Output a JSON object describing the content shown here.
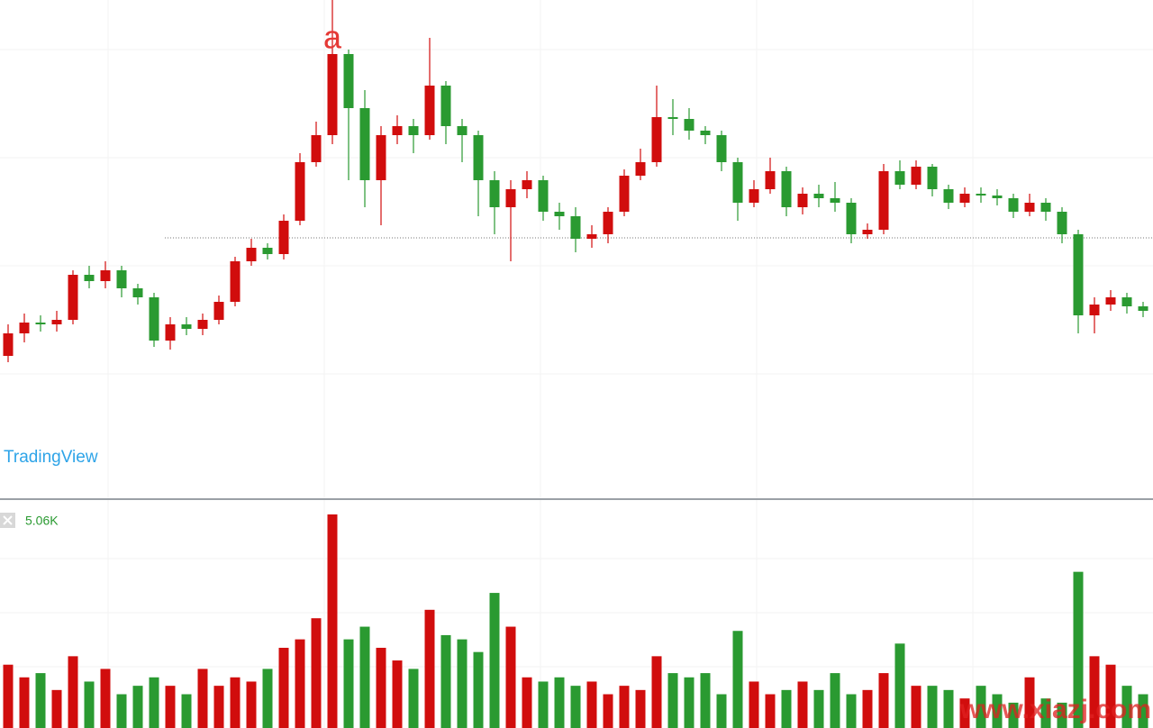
{
  "chart_data": {
    "type": "candlestick",
    "annotation": "a",
    "branding": "TradingView",
    "volume_label": "5.06K",
    "watermark": "www.xiazj.com",
    "up_color": "#d10d0d",
    "down_color": "#2a9a31",
    "ylim": [
      250,
      800
    ],
    "level": 536,
    "open": [
      405,
      430,
      442,
      440,
      445,
      495,
      488,
      500,
      480,
      470,
      422,
      440,
      435,
      445,
      465,
      510,
      525,
      518,
      555,
      620,
      650,
      740,
      680,
      600,
      650,
      660,
      650,
      705,
      660,
      650,
      600,
      570,
      590,
      600,
      565,
      560,
      535,
      540,
      565,
      605,
      620,
      670,
      668,
      655,
      650,
      620,
      575,
      590,
      610,
      570,
      585,
      580,
      575,
      540,
      545,
      610,
      595,
      615,
      590,
      575,
      585,
      583,
      580,
      565,
      575,
      565,
      540,
      450,
      462,
      470,
      460
    ],
    "high": [
      440,
      452,
      450,
      455,
      500,
      505,
      510,
      505,
      485,
      475,
      448,
      448,
      452,
      472,
      515,
      535,
      530,
      562,
      630,
      665,
      800,
      745,
      700,
      660,
      672,
      668,
      758,
      710,
      668,
      655,
      610,
      600,
      610,
      605,
      575,
      570,
      550,
      570,
      612,
      635,
      705,
      690,
      680,
      660,
      655,
      625,
      600,
      625,
      615,
      592,
      595,
      598,
      580,
      552,
      618,
      622,
      622,
      618,
      595,
      592,
      592,
      590,
      585,
      585,
      580,
      570,
      545,
      470,
      478,
      475,
      465
    ],
    "low": [
      398,
      420,
      432,
      432,
      440,
      480,
      480,
      470,
      462,
      415,
      412,
      428,
      428,
      440,
      460,
      505,
      512,
      512,
      550,
      615,
      640,
      600,
      570,
      550,
      640,
      630,
      645,
      640,
      620,
      560,
      540,
      510,
      580,
      555,
      545,
      520,
      525,
      530,
      560,
      600,
      615,
      650,
      645,
      640,
      610,
      555,
      570,
      585,
      560,
      562,
      570,
      565,
      530,
      535,
      540,
      590,
      590,
      582,
      568,
      570,
      575,
      572,
      558,
      560,
      555,
      530,
      430,
      430,
      455,
      452,
      448
    ],
    "close": [
      430,
      442,
      440,
      445,
      495,
      488,
      500,
      480,
      470,
      422,
      440,
      435,
      445,
      465,
      510,
      525,
      518,
      555,
      620,
      650,
      740,
      680,
      600,
      650,
      660,
      650,
      705,
      660,
      650,
      600,
      570,
      590,
      600,
      565,
      560,
      535,
      540,
      565,
      605,
      620,
      670,
      668,
      655,
      650,
      620,
      575,
      590,
      610,
      570,
      585,
      580,
      575,
      540,
      545,
      610,
      595,
      615,
      590,
      575,
      585,
      583,
      580,
      565,
      575,
      565,
      540,
      450,
      462,
      470,
      460,
      455
    ],
    "volume_ylim": [
      0,
      5400
    ],
    "volume": [
      1500,
      1200,
      1300,
      900,
      1700,
      1100,
      1400,
      800,
      1000,
      1200,
      1000,
      800,
      1400,
      1000,
      1200,
      1100,
      1400,
      1900,
      2100,
      2600,
      5060,
      2100,
      2400,
      1900,
      1600,
      1400,
      2800,
      2200,
      2100,
      1800,
      3200,
      2400,
      1200,
      1100,
      1200,
      1000,
      1100,
      800,
      1000,
      900,
      1700,
      1300,
      1200,
      1300,
      800,
      2300,
      1100,
      800,
      900,
      1100,
      900,
      1300,
      800,
      900,
      1300,
      2000,
      1000,
      1000,
      900,
      700,
      1000,
      800,
      600,
      1200,
      700,
      600,
      3700,
      1700,
      1500,
      1000,
      800
    ]
  }
}
